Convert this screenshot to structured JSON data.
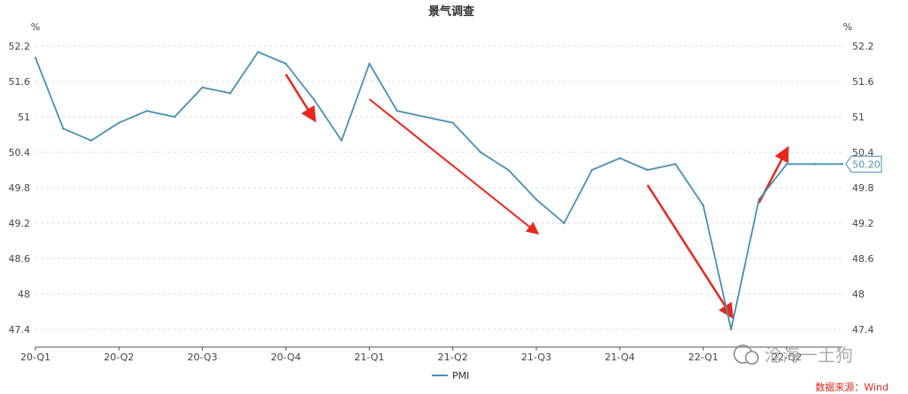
{
  "chart_data": {
    "type": "line",
    "title": "景气调查",
    "y_unit_left": "%",
    "y_unit_right": "%",
    "ylim": [
      47.1,
      52.3
    ],
    "yticks": [
      52.2,
      51.6,
      51,
      50.4,
      49.8,
      49.2,
      48.6,
      48,
      47.4
    ],
    "x_tick_labels": [
      "20-Q1",
      "20-Q2",
      "20-Q3",
      "20-Q4",
      "21-Q1",
      "21-Q2",
      "21-Q3",
      "21-Q4",
      "22-Q1",
      "22-Q2"
    ],
    "grid": true,
    "legend_position": "bottom",
    "series": [
      {
        "name": "PMI",
        "color": "#4a90b5",
        "x": [
          "2020-01",
          "2020-02",
          "2020-03",
          "2020-04",
          "2020-05",
          "2020-06",
          "2020-07",
          "2020-08",
          "2020-09",
          "2020-10",
          "2020-11",
          "2020-12",
          "2021-01",
          "2021-02",
          "2021-03",
          "2021-04",
          "2021-05",
          "2021-06",
          "2021-07",
          "2021-08",
          "2021-09",
          "2021-10",
          "2021-11",
          "2021-12",
          "2022-01",
          "2022-02",
          "2022-03",
          "2022-04",
          "2022-05",
          "2022-06"
        ],
        "values": [
          52.0,
          50.8,
          50.6,
          50.9,
          51.1,
          51.0,
          51.5,
          51.4,
          52.1,
          51.9,
          51.3,
          50.6,
          51.9,
          51.1,
          51.0,
          50.9,
          50.4,
          50.1,
          49.6,
          49.2,
          50.1,
          50.3,
          50.1,
          50.2,
          49.5,
          47.4,
          49.6,
          50.2,
          50.2,
          50.2
        ]
      }
    ],
    "last_value_label": "50.20",
    "annotation_color": "#e8281e"
  },
  "source_note": "数据来源：Wind",
  "watermark_text": "沧海一土狗"
}
